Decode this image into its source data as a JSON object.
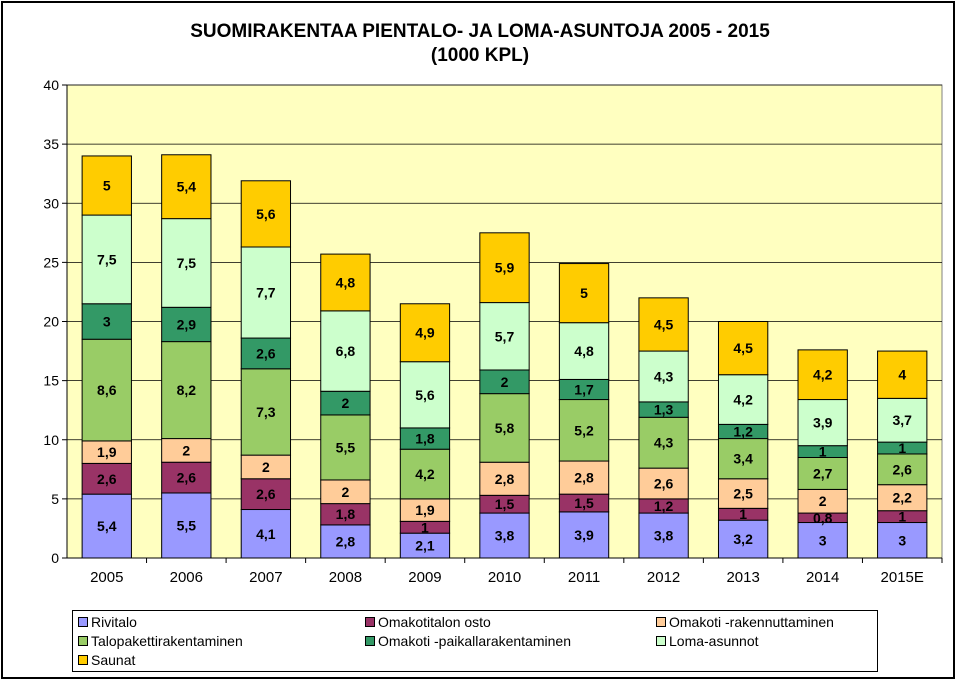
{
  "title_line1": "SUOMIRAKENTAA PIENTALO- JA LOMA-ASUNTOJA 2005 - 2015",
  "title_line2": "(1000 KPL)",
  "chart_data": {
    "type": "bar",
    "stacked": true,
    "title": "SUOMIRAKENTAA PIENTALO- JA LOMA-ASUNTOJA 2005 - 2015 (1000 KPL)",
    "categories": [
      "2005",
      "2006",
      "2007",
      "2008",
      "2009",
      "2010",
      "2011",
      "2012",
      "2013",
      "2014",
      "2015E"
    ],
    "ylim": [
      0,
      40
    ],
    "yticks": [
      0,
      5,
      10,
      15,
      20,
      25,
      30,
      35,
      40
    ],
    "grid": true,
    "legend_position": "bottom",
    "series": [
      {
        "name": "Rivitalo",
        "color": "#9999ff",
        "values": [
          5.4,
          5.5,
          4.1,
          2.8,
          2.1,
          3.8,
          3.9,
          3.8,
          3.2,
          3,
          3
        ],
        "labels": [
          "5,4",
          "5,5",
          "4,1",
          "2,8",
          "2,1",
          "3,8",
          "3,9",
          "3,8",
          "3,2",
          "3",
          "3"
        ]
      },
      {
        "name": "Omakotitalon osto",
        "color": "#993366",
        "values": [
          2.6,
          2.6,
          2.6,
          1.8,
          1,
          1.5,
          1.5,
          1.2,
          1,
          0.8,
          1
        ],
        "labels": [
          "2,6",
          "2,6",
          "2,6",
          "1,8",
          "1",
          "1,5",
          "1,5",
          "1,2",
          "1",
          "0,8",
          "1"
        ]
      },
      {
        "name": "Omakoti -rakennuttaminen",
        "color": "#ffcc99",
        "values": [
          1.9,
          2,
          2,
          2,
          1.9,
          2.8,
          2.8,
          2.6,
          2.5,
          2,
          2.2
        ],
        "labels": [
          "1,9",
          "2",
          "2",
          "2",
          "1,9",
          "2,8",
          "2,8",
          "2,6",
          "2,5",
          "2",
          "2,2"
        ]
      },
      {
        "name": "Talopakettirakentaminen",
        "color": "#99cc66",
        "values": [
          8.6,
          8.2,
          7.3,
          5.5,
          4.2,
          5.8,
          5.2,
          4.3,
          3.4,
          2.7,
          2.6
        ],
        "labels": [
          "8,6",
          "8,2",
          "7,3",
          "5,5",
          "4,2",
          "5,8",
          "5,2",
          "4,3",
          "3,4",
          "2,7",
          "2,6"
        ]
      },
      {
        "name": "Omakoti -paikallarakentaminen",
        "color": "#339966",
        "values": [
          3,
          2.9,
          2.6,
          2,
          1.8,
          2,
          1.7,
          1.3,
          1.2,
          1,
          1
        ],
        "labels": [
          "3",
          "2,9",
          "2,6",
          "2",
          "1,8",
          "2",
          "1,7",
          "1,3",
          "1,2",
          "1",
          "1"
        ]
      },
      {
        "name": "Loma-asunnot",
        "color": "#ccffcc",
        "values": [
          7.5,
          7.5,
          7.7,
          6.8,
          5.6,
          5.7,
          4.8,
          4.3,
          4.2,
          3.9,
          3.7
        ],
        "labels": [
          "7,5",
          "7,5",
          "7,7",
          "6,8",
          "5,6",
          "5,7",
          "4,8",
          "4,3",
          "4,2",
          "3,9",
          "3,7"
        ]
      },
      {
        "name": "Saunat",
        "color": "#ffcc00",
        "values": [
          5,
          5.4,
          5.6,
          4.8,
          4.9,
          5.9,
          5,
          4.5,
          4.5,
          4.2,
          4
        ],
        "labels": [
          "5",
          "5,4",
          "5,6",
          "4,8",
          "4,9",
          "5,9",
          "5",
          "4,5",
          "4,5",
          "4,2",
          "4"
        ]
      }
    ]
  }
}
